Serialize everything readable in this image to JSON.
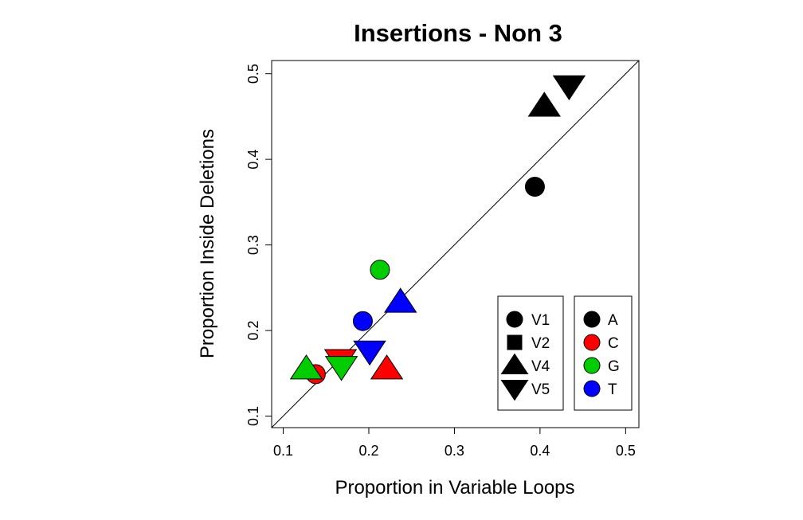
{
  "chart_data": {
    "type": "scatter",
    "title": "Insertions - Non 3",
    "xlabel": "Proportion in Variable Loops",
    "ylabel": "Proportion Inside Deletions",
    "xlim": [
      0.1,
      0.5
    ],
    "ylim": [
      0.1,
      0.5
    ],
    "xticks": [
      "0.1",
      "0.2",
      "0.3",
      "0.4",
      "0.5"
    ],
    "yticks": [
      "0.1",
      "0.2",
      "0.3",
      "0.4",
      "0.5"
    ],
    "reference_line": "y = x",
    "grid": false,
    "legends": [
      {
        "placement": "bottom-right",
        "entries": [
          {
            "label": "V1",
            "shape": "circle"
          },
          {
            "label": "V2",
            "shape": "square"
          },
          {
            "label": "V4",
            "shape": "triangle-up"
          },
          {
            "label": "V5",
            "shape": "triangle-down"
          }
        ]
      },
      {
        "placement": "bottom-right",
        "entries": [
          {
            "label": "A",
            "color": "#000000"
          },
          {
            "label": "C",
            "color": "#ff0000"
          },
          {
            "label": "G",
            "color": "#00cd00"
          },
          {
            "label": "T",
            "color": "#0000ff"
          }
        ]
      }
    ],
    "points": [
      {
        "region": "V1",
        "base": "A",
        "x": 0.394,
        "y": 0.368
      },
      {
        "region": "V4",
        "base": "A",
        "x": 0.405,
        "y": 0.462
      },
      {
        "region": "V5",
        "base": "A",
        "x": 0.434,
        "y": 0.486
      },
      {
        "region": "V1",
        "base": "C",
        "x": 0.138,
        "y": 0.149
      },
      {
        "region": "V5",
        "base": "C",
        "x": 0.167,
        "y": 0.166
      },
      {
        "region": "V4",
        "base": "C",
        "x": 0.221,
        "y": 0.155
      },
      {
        "region": "V1",
        "base": "G",
        "x": 0.213,
        "y": 0.271
      },
      {
        "region": "V4",
        "base": "G",
        "x": 0.127,
        "y": 0.155
      },
      {
        "region": "V5",
        "base": "G",
        "x": 0.168,
        "y": 0.158
      },
      {
        "region": "V1",
        "base": "T",
        "x": 0.193,
        "y": 0.211
      },
      {
        "region": "V4",
        "base": "T",
        "x": 0.237,
        "y": 0.233
      },
      {
        "region": "V5",
        "base": "T",
        "x": 0.201,
        "y": 0.176
      }
    ]
  }
}
